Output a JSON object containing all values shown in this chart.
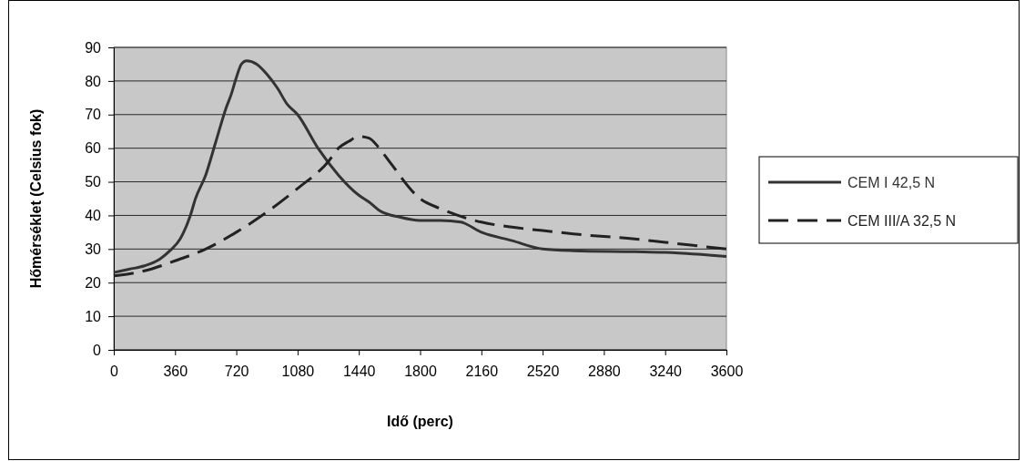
{
  "chart_data": {
    "type": "line",
    "xlabel": "Idő (perc)",
    "ylabel": "Hőmérséklet (Celsius fok)",
    "xlim": [
      0,
      3600
    ],
    "xticks": [
      0,
      360,
      720,
      1080,
      1440,
      1800,
      2160,
      2520,
      2880,
      3240,
      3600
    ],
    "ylim": [
      0,
      90
    ],
    "yticks": [
      0,
      10,
      20,
      30,
      40,
      50,
      60,
      70,
      80,
      90
    ],
    "grid": "y",
    "legend": "right",
    "marker": "none",
    "series": [
      {
        "name": "CEM I 42,5 N",
        "color": "#333333",
        "line_style": "solid",
        "x": [
          0,
          90,
          180,
          270,
          330,
          390,
          450,
          480,
          540,
          600,
          660,
          690,
          720,
          750,
          780,
          840,
          900,
          960,
          1020,
          1080,
          1200,
          1320,
          1440,
          1500,
          1560,
          1680,
          1800,
          1920,
          2040,
          2160,
          2340,
          2520,
          2700,
          3060,
          3240,
          3600
        ],
        "values": [
          23,
          24,
          25,
          27,
          29.5,
          33,
          40,
          45,
          52,
          62,
          72,
          76,
          81,
          85,
          86,
          85,
          82,
          78,
          73,
          70,
          60,
          52,
          46,
          44,
          41.5,
          39.5,
          38.5,
          38.5,
          38,
          35,
          32.5,
          30,
          29.5,
          29.2,
          29,
          27.8
        ]
      },
      {
        "name": "CEM III/A 32,5 N",
        "color": "#222222",
        "line_style": "dashed",
        "x": [
          0,
          180,
          360,
          540,
          720,
          900,
          1080,
          1260,
          1320,
          1380,
          1440,
          1500,
          1560,
          1620,
          1800,
          1920,
          2160,
          2340,
          2520,
          2700,
          3060,
          3240,
          3600
        ],
        "values": [
          22,
          23.5,
          26.5,
          30,
          35,
          41,
          48,
          56,
          60,
          62,
          63.5,
          63,
          60,
          56,
          45,
          42,
          38,
          36.5,
          35.5,
          34.5,
          33,
          32,
          30
        ]
      }
    ]
  }
}
